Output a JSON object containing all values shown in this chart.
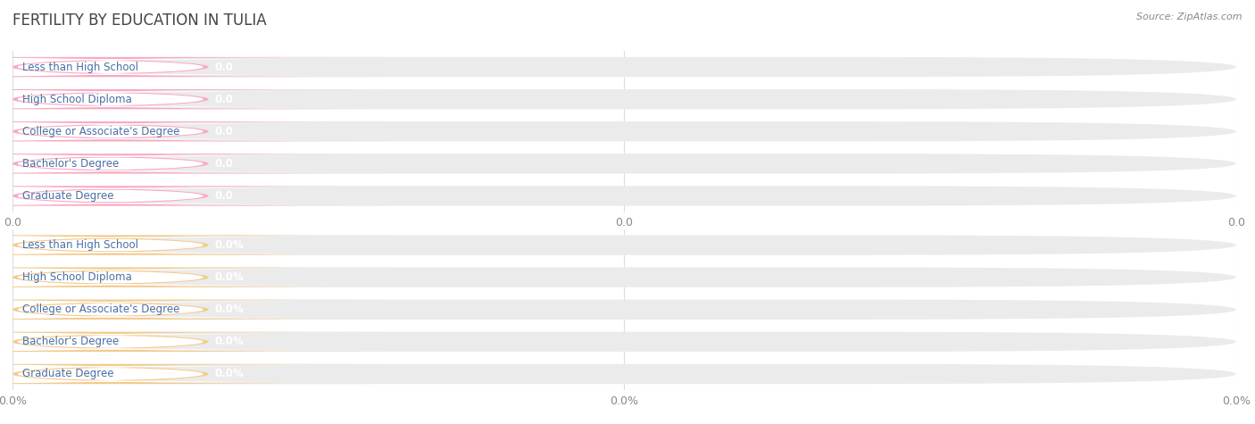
{
  "title": "FERTILITY BY EDUCATION IN TULIA",
  "source": "Source: ZipAtlas.com",
  "categories": [
    "Less than High School",
    "High School Diploma",
    "College or Associate's Degree",
    "Bachelor's Degree",
    "Graduate Degree"
  ],
  "group1_values": [
    0.0,
    0.0,
    0.0,
    0.0,
    0.0
  ],
  "group1_labels": [
    "0.0",
    "0.0",
    "0.0",
    "0.0",
    "0.0"
  ],
  "group1_bar_color": "#F9A8C0",
  "group1_bg_color": "#EBEBEB",
  "group2_values": [
    0.0,
    0.0,
    0.0,
    0.0,
    0.0
  ],
  "group2_labels": [
    "0.0%",
    "0.0%",
    "0.0%",
    "0.0%",
    "0.0%"
  ],
  "group2_bar_color": "#F5C98A",
  "group2_bg_color": "#EBEBEB",
  "label_text_color": "#4a6fa5",
  "value_text_color": "#ffffff",
  "title_color": "#444444",
  "source_color": "#888888",
  "xlabel_group1": [
    "0.0",
    "0.0",
    "0.0"
  ],
  "xlabel_group2": [
    "0.0%",
    "0.0%",
    "0.0%"
  ],
  "background_color": "#ffffff",
  "grid_color": "#dddddd"
}
